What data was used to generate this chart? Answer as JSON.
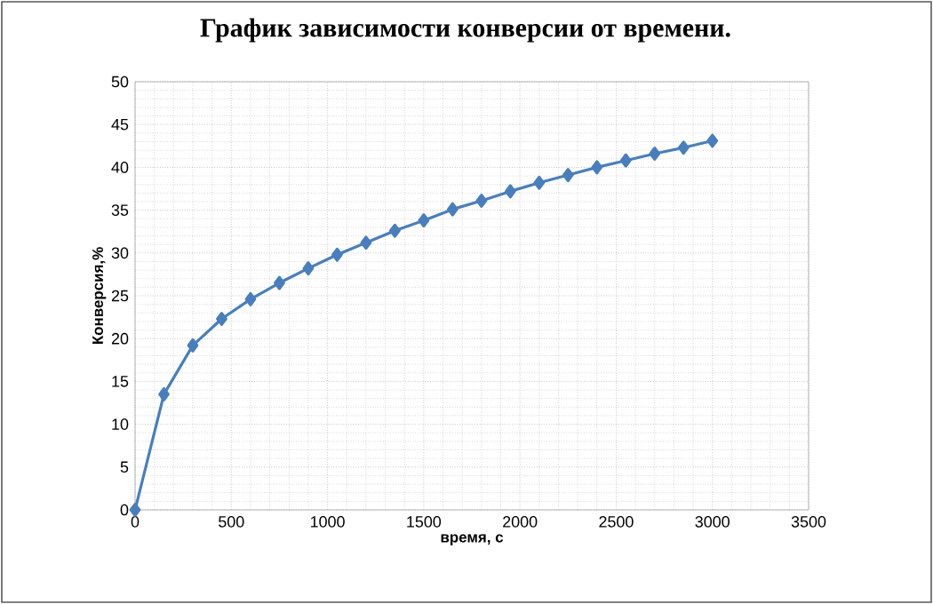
{
  "chart_data": {
    "type": "line",
    "title": "График зависимости конверсии от времени.",
    "xlabel": "время, с",
    "ylabel": "Конверсия,%",
    "x": [
      0,
      150,
      300,
      450,
      600,
      750,
      900,
      1050,
      1200,
      1350,
      1500,
      1650,
      1800,
      1950,
      2100,
      2250,
      2400,
      2550,
      2700,
      2850,
      3000
    ],
    "series": [
      {
        "color": "#4a7ebb",
        "values": [
          0,
          13.5,
          19.2,
          22.3,
          24.6,
          26.5,
          28.2,
          29.8,
          31.2,
          32.6,
          33.8,
          35.1,
          36.1,
          37.2,
          38.2,
          39.1,
          40.0,
          40.8,
          41.6,
          42.3,
          43.1
        ]
      }
    ],
    "xlim": [
      0,
      3500
    ],
    "xticks": [
      0,
      500,
      1000,
      1500,
      2000,
      2500,
      3000,
      3500
    ],
    "ylim": [
      0,
      50
    ],
    "yticks": [
      0,
      5,
      10,
      15,
      20,
      25,
      30,
      35,
      40,
      45,
      50
    ],
    "grid": true,
    "marker": "diamond",
    "line_style": "solid"
  }
}
